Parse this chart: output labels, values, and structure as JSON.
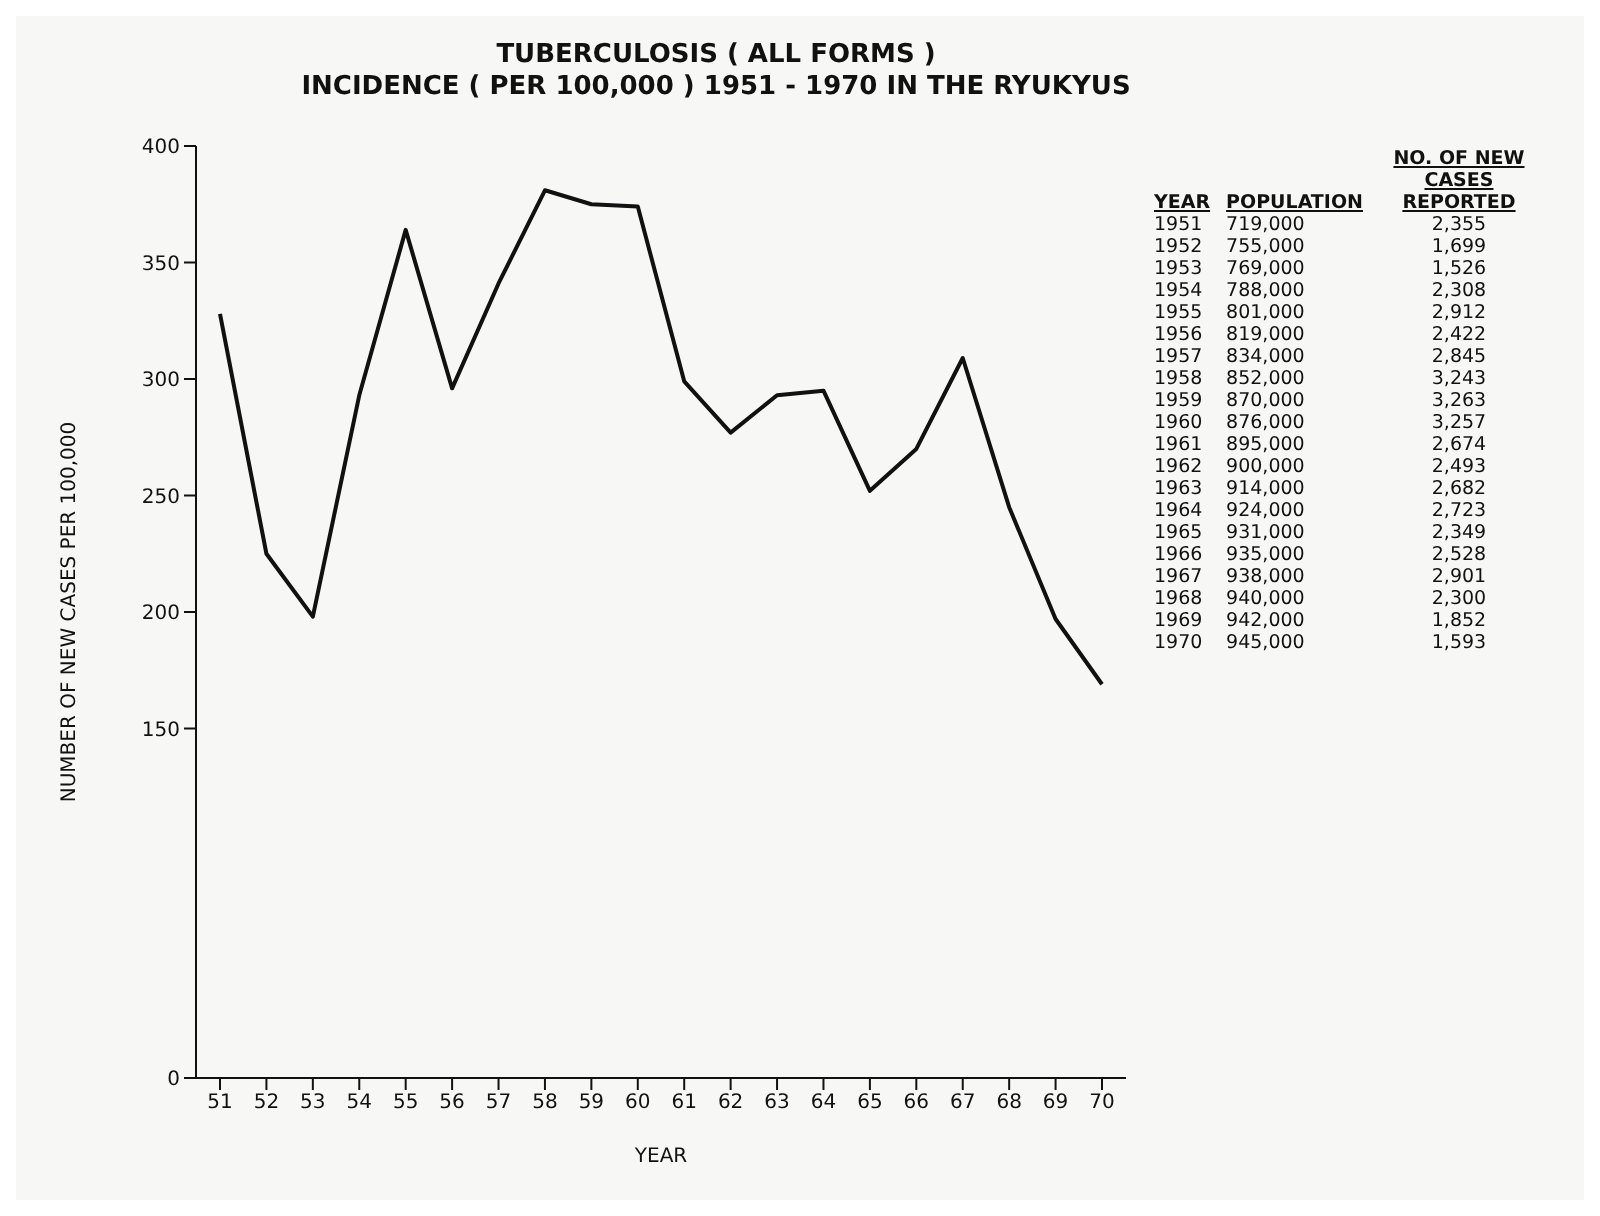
{
  "chart_data": {
    "type": "line",
    "title": "TUBERCULOSIS ( ALL FORMS )",
    "subtitle": "INCIDENCE ( PER 100,000 ) 1951 - 1970 IN THE RYUKYUS",
    "xlabel": "YEAR",
    "ylabel": "NUMBER OF NEW CASES PER 100,000",
    "categories": [
      "51",
      "52",
      "53",
      "54",
      "55",
      "56",
      "57",
      "58",
      "59",
      "60",
      "61",
      "62",
      "63",
      "64",
      "65",
      "66",
      "67",
      "68",
      "69",
      "70"
    ],
    "series": [
      {
        "color": "#111111",
        "values": [
          328,
          225,
          198,
          293,
          364,
          296,
          341,
          381,
          375,
          374,
          299,
          277,
          293,
          295,
          252,
          270,
          309,
          245,
          197,
          169
        ]
      }
    ],
    "ylim": [
      0,
      400
    ],
    "yticks": [
      0,
      150,
      200,
      250,
      300,
      350,
      400
    ],
    "grid": false,
    "legend": false,
    "marker": "none",
    "line_style": "solid",
    "annotations": [
      "YEAR",
      "POPULATION",
      "NO. OF NEW CASES REPORTED",
      "1951 719,000 2,355",
      "1952 755,000 1,699",
      "1953 769,000 1,526",
      "1954 788,000 2,308",
      "1955 801,000 2,912",
      "1956 819,000 2,422",
      "1957 834,000 2,845",
      "1958 852,000 3,243",
      "1959 870,000 3,263",
      "1960 876,000 3,257",
      "1961 895,000 2,674",
      "1962 900,000 2,493",
      "1963 914,000 2,682",
      "1964 924,000 2,723",
      "1965 931,000 2,349",
      "1966 935,000 2,528",
      "1967 938,000 2,901",
      "1968 940,000 2,300",
      "1969 942,000 1,852",
      "1970 945,000 1,593"
    ]
  }
}
